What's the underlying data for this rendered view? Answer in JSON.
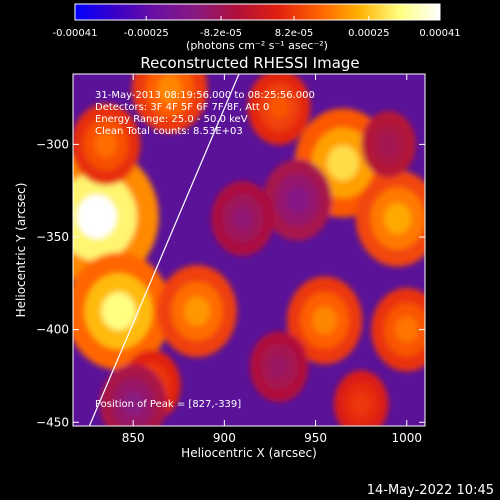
{
  "colorbar": {
    "tick_labels": [
      "-0.00041",
      "-0.00025",
      "-8.2e-05",
      "8.2e-05",
      "0.00025",
      "0.00041"
    ],
    "tick_values": [
      -0.00041,
      -0.00025,
      -8.2e-05,
      8.2e-05,
      0.00025,
      0.00041
    ],
    "range": [
      -0.00041,
      0.00041
    ],
    "unit_label": "(photons cm⁻² s⁻¹ asec⁻²)",
    "colors": [
      "#0000ff",
      "#3a00c8",
      "#6a10a0",
      "#8a1a80",
      "#b0103a",
      "#e02010",
      "#ff6000",
      "#ffb000",
      "#ffff80",
      "#ffffff"
    ]
  },
  "chart_data": {
    "type": "heatmap",
    "title": "Reconstructed RHESSI Image",
    "xlabel": "Heliocentric X (arcsec)",
    "ylabel": "Heliocentric Y (arcsec)",
    "xlim": [
      817,
      1010
    ],
    "ylim": [
      -452,
      -262
    ],
    "x_ticks": [
      850,
      900,
      950,
      1000
    ],
    "x_tick_labels": [
      "850",
      "900",
      "950",
      "1000"
    ],
    "y_ticks": [
      -300,
      -350,
      -400,
      -450
    ],
    "y_tick_labels": [
      "−300",
      "−350",
      "−400",
      "−450"
    ],
    "annotations": [
      "31-May-2013 08:19:56.000 to 08:25:56.000",
      "Detectors: 3F 4F 5F 6F 7F 8F, Att 0",
      "Energy Range: 25.0 - 50.0 keV",
      "Clean    Total counts: 8.53E+03"
    ],
    "peak_label": "Position of Peak = [827,-339]",
    "peak_position": [
      827,
      -339
    ],
    "limb_line": [
      [
        826,
        -452
      ],
      [
        908,
        -262
      ]
    ],
    "hot_spots": [
      {
        "x": 830,
        "y": -339,
        "value": 0.00041
      },
      {
        "x": 842,
        "y": -390,
        "value": 0.00032
      },
      {
        "x": 965,
        "y": -310,
        "value": 0.00028
      },
      {
        "x": 995,
        "y": -340,
        "value": 0.00022
      },
      {
        "x": 885,
        "y": -390,
        "value": 0.0002
      },
      {
        "x": 870,
        "y": -270,
        "value": 0.00018
      },
      {
        "x": 955,
        "y": -395,
        "value": 0.00018
      },
      {
        "x": 1000,
        "y": -400,
        "value": 0.00016
      },
      {
        "x": 930,
        "y": -280,
        "value": 0.00012
      },
      {
        "x": 835,
        "y": -300,
        "value": 0.00015
      },
      {
        "x": 860,
        "y": -430,
        "value": 0.0001
      },
      {
        "x": 975,
        "y": -440,
        "value": 8e-05
      },
      {
        "x": 940,
        "y": -330,
        "value": -0.00015
      },
      {
        "x": 910,
        "y": -340,
        "value": -0.00012
      },
      {
        "x": 850,
        "y": -440,
        "value": -0.00014
      },
      {
        "x": 930,
        "y": -420,
        "value": -0.0001
      },
      {
        "x": 990,
        "y": -300,
        "value": -8e-05
      }
    ]
  },
  "footer": {
    "timestamp": "14-May-2022 10:45"
  }
}
